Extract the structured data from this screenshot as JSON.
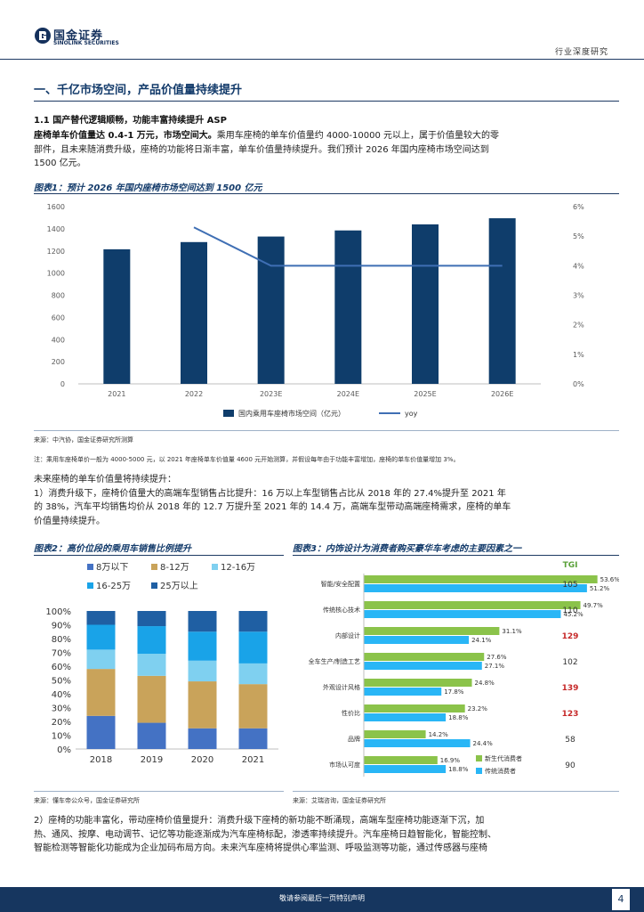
{
  "header": {
    "logo_cn": "国金证券",
    "logo_en": "SINOLINK SECURITIES",
    "doc_type": "行业深度研究"
  },
  "section": {
    "title": "一、千亿市场空间，产品价值量持续提升",
    "subtitle": "1.1 国产替代逻辑顺畅，功能丰富持续提升 ASP",
    "para1_bold": "座椅单车价值量达 0.4-1 万元，市场空间大。",
    "para1_text_line1": "乘用车座椅的单车价值量约 4000-10000 元以上，属于价值量较大的零",
    "para1_text_line2": "部件，且未来随消费升级，座椅的功能将日渐丰富，单车价值量持续提升。我们预计 2026 年国内座椅市场空间达到",
    "para1_text_line3": "1500 亿元。",
    "future_intro": "未来座椅的单车价值量将持续提升：",
    "point1_line1": "1）消费升级下，座椅价值量大的高端车型销售占比提升：16 万以上车型销售占比从 2018 年的 27.4%提升至 2021 年",
    "point1_line2": "的 38%，汽车平均销售均价从 2018 年的 12.7 万提升至 2021 年的 14.4 万，高端车型带动高端座椅需求，座椅的单车",
    "point1_line3": "价值量持续提升。",
    "point2_line1": "2）座椅的功能丰富化，带动座椅价值量提升：消费升级下座椅的新功能不断涌现，高端车型座椅功能逐渐下沉，加",
    "point2_line2": "热、通风、按摩、电动调节、记忆等功能逐渐成为汽车座椅标配，渗透率持续提升。汽车座椅日趋智能化，智能控制、",
    "point2_line3": "智能检测等智能化功能成为企业加码布局方向。未来汽车座椅将提供心率监测、呼吸监测等功能，通过传感器与座椅"
  },
  "fig1": {
    "title": "图表1：预计 2026 年国内座椅市场空间达到 1500 亿元",
    "source": "来源：中汽协，国金证券研究所测算",
    "note": "注：乘用车座椅单价一般为 4000-5000 元，以 2021 年座椅单车价值量 4600 元开始测算，并假设每年由于功能丰富增加，座椅的单车价值量增加 3%。"
  },
  "fig2": {
    "title": "图表2：高价位段的乘用车销售比例提升",
    "source": "来源：懂车帝公众号，国金证券研究所"
  },
  "fig3": {
    "title": "图表3：内饰设计为消费者购买豪华车考虑的主要因素之一",
    "source": "来源：艾瑞咨询，国金证券研究所",
    "tgi_label": "TGI"
  },
  "footer": {
    "text": "敬请参阅最后一页特别声明",
    "page": "4"
  },
  "chart_data": [
    {
      "type": "bar",
      "categories": [
        "2021",
        "2022",
        "2023E",
        "2024E",
        "2025E",
        "2026E"
      ],
      "series": [
        {
          "name": "国内乘用车座椅市场空间（亿元）",
          "type": "bar",
          "axis": "left",
          "values": [
            1215,
            1280,
            1330,
            1385,
            1440,
            1495
          ]
        },
        {
          "name": "yoy",
          "type": "line",
          "axis": "right",
          "values": [
            null,
            5.3,
            4.0,
            4.0,
            4.0,
            4.0
          ]
        }
      ],
      "left_ticks": [
        "0",
        "200",
        "400",
        "600",
        "800",
        "1000",
        "1200",
        "1400",
        "1600"
      ],
      "right_ticks": [
        "0%",
        "1%",
        "2%",
        "3%",
        "4%",
        "5%",
        "6%"
      ],
      "ylim_left": [
        0,
        1600
      ],
      "ylim_right": [
        0,
        6
      ],
      "colors": [
        "#0f3d6b",
        "#3f6fb4"
      ]
    },
    {
      "type": "bar",
      "stacked": true,
      "categories": [
        "2018",
        "2019",
        "2020",
        "2021"
      ],
      "series": [
        {
          "name": "8万以下",
          "values": [
            24,
            19,
            15,
            15
          ],
          "color": "#4472c4"
        },
        {
          "name": "8-12万",
          "values": [
            34,
            34,
            34,
            32
          ],
          "color": "#c9a35a"
        },
        {
          "name": "12-16万",
          "values": [
            14,
            16,
            15,
            15
          ],
          "color": "#7fd0f0"
        },
        {
          "name": "16-25万",
          "values": [
            18,
            20,
            21,
            23
          ],
          "color": "#19a3e8"
        },
        {
          "name": "25万以上",
          "values": [
            10,
            11,
            15,
            15
          ],
          "color": "#1f5fa3"
        }
      ],
      "y_ticks": [
        "0%",
        "10%",
        "20%",
        "30%",
        "40%",
        "50%",
        "60%",
        "70%",
        "80%",
        "90%",
        "100%"
      ],
      "ylim": [
        0,
        100
      ]
    },
    {
      "type": "bar",
      "orientation": "horizontal",
      "categories": [
        "智能/安全配置",
        "传统核心技术",
        "内部设计",
        "全车生产/制造工艺",
        "外观设计风格",
        "性价比",
        "品牌",
        "市场认可度"
      ],
      "series": [
        {
          "name": "新生代消费者",
          "values": [
            53.6,
            49.7,
            31.1,
            27.6,
            24.8,
            23.2,
            14.2,
            16.9
          ],
          "labels": [
            "53.6%",
            "49.7%",
            "31.1%",
            "27.6%",
            "24.8%",
            "23.2%",
            "14.2%",
            "16.9%"
          ],
          "color": "#8bc34a"
        },
        {
          "name": "传统消费者",
          "values": [
            51.2,
            45.2,
            24.1,
            27.1,
            17.8,
            18.8,
            24.4,
            18.8
          ],
          "labels": [
            "51.2%",
            "45.2%",
            "24.1%",
            "27.1%",
            "17.8%",
            "18.8%",
            "24.4%",
            "18.8%"
          ],
          "color": "#29b6f6"
        }
      ],
      "tgi": [
        "105",
        "110",
        "129",
        "102",
        "139",
        "123",
        "58",
        "90"
      ],
      "tgi_highlight": [
        false,
        false,
        true,
        false,
        true,
        true,
        false,
        false
      ],
      "tgi_color": "#333333",
      "tgi_highlight_color": "#c62828"
    }
  ]
}
